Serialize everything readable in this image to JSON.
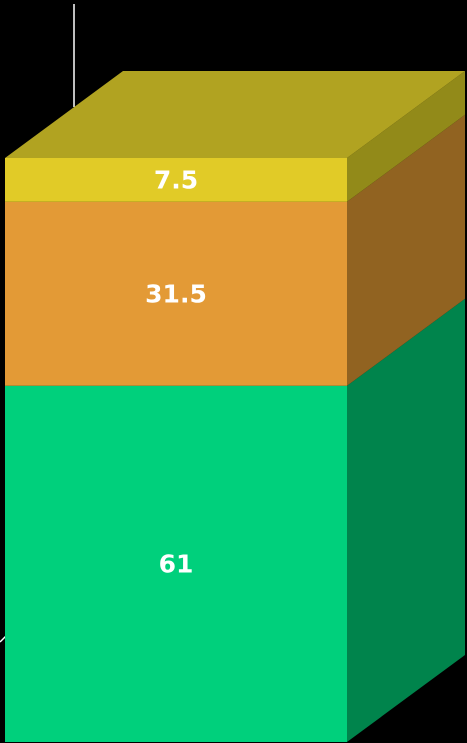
{
  "chart_data": {
    "type": "bar",
    "subtype": "stacked-3d",
    "categories": [
      ""
    ],
    "series": [
      {
        "values": [
          61
        ],
        "color": "#00d07c",
        "side_color": "#00844c"
      },
      {
        "values": [
          31.5
        ],
        "color": "#e39a36",
        "side_color": "#916321"
      },
      {
        "values": [
          7.5
        ],
        "color": "#e1cb27",
        "side_color": "#928a19"
      }
    ],
    "top_color": "#b1a321",
    "axis_color": "#ffffff",
    "data_labels": [
      "61",
      "31.5",
      "7.5"
    ],
    "ylim": [
      0,
      100
    ],
    "grid": false,
    "legend": "none"
  }
}
